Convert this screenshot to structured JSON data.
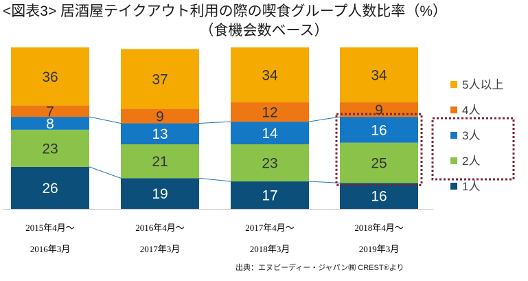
{
  "title": "<図表3> 居酒屋テイクアウト利用の際の喫食グループ人数比率（%）",
  "subtitle": "（食機会数ベース）",
  "source": "出典：エヌピーディー・ジャパン㈱ CREST®より",
  "chart_data": {
    "type": "bar",
    "stacked": true,
    "ylim": [
      0,
      100
    ],
    "categories": [
      [
        "2015年4月～",
        "2016年3月"
      ],
      [
        "2016年4月～",
        "2017年3月"
      ],
      [
        "2017年4月～",
        "2018年3月"
      ],
      [
        "2018年4月～",
        "2019年3月"
      ]
    ],
    "series": [
      {
        "name": "1人",
        "color": "#0b4f7a",
        "label_color": "#ffffff",
        "values": [
          26,
          19,
          17,
          16
        ]
      },
      {
        "name": "2人",
        "color": "#8bc34a",
        "label_color": "#333333",
        "values": [
          23,
          21,
          23,
          25
        ]
      },
      {
        "name": "3人",
        "color": "#1478c4",
        "label_color": "#ffffff",
        "values": [
          8,
          13,
          14,
          16
        ]
      },
      {
        "name": "4人",
        "color": "#ee7713",
        "label_color": "#333333",
        "values": [
          7,
          9,
          12,
          9
        ]
      },
      {
        "name": "5人以上",
        "color": "#f4aa00",
        "label_color": "#333333",
        "values": [
          36,
          37,
          34,
          34
        ]
      }
    ],
    "legend_position": "right",
    "gridlines": false,
    "connector_lines": true,
    "highlight": {
      "category_index": 3,
      "series": [
        "2人",
        "3人"
      ],
      "legend_series": [
        "3人",
        "2人"
      ],
      "color": "#7b2535"
    }
  }
}
